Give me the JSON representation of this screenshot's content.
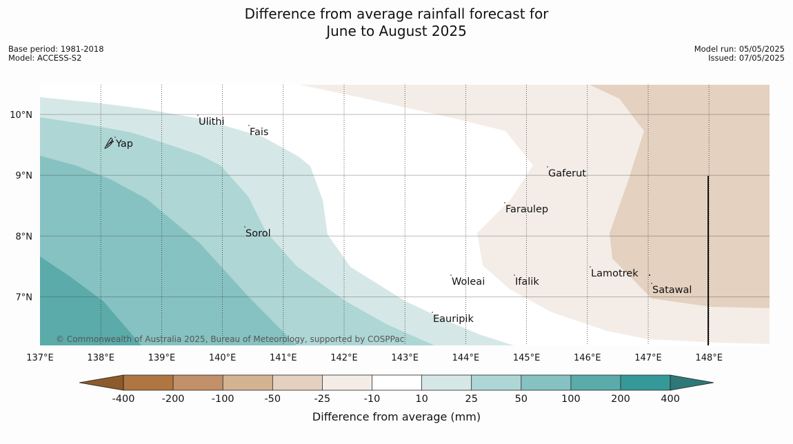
{
  "title": {
    "line1": "Difference from average rainfall forecast for",
    "line2": "June to August 2025"
  },
  "meta_left": {
    "base_period": "Base period: 1981-2018",
    "model": "Model: ACCESS-S2"
  },
  "meta_right": {
    "model_run": "Model run: 05/05/2025",
    "issued": "Issued: 07/05/2025"
  },
  "map": {
    "lat_labels": [
      "10°N",
      "9°N",
      "8°N",
      "7°N"
    ],
    "lon_labels": [
      "137°E",
      "138°E",
      "139°E",
      "140°E",
      "141°E",
      "142°E",
      "143°E",
      "144°E",
      "145°E",
      "146°E",
      "147°E",
      "148°E"
    ],
    "places": [
      "Ulithi",
      "Fais",
      "Yap",
      "Gaferut",
      "Faraulep",
      "Sorol",
      "Woleai",
      "Ifalik",
      "Lamotrek",
      "Satawal",
      "Eauripik"
    ],
    "copyright": "© Commonwealth of Australia 2025, Bureau of Meteorology, supported by COSPPac"
  },
  "colorbar": {
    "ticks": [
      "-400",
      "-200",
      "-100",
      "-50",
      "-25",
      "-10",
      "10",
      "25",
      "50",
      "100",
      "200",
      "400"
    ],
    "label": "Difference from average (mm)",
    "colors": {
      "lt_minus400": "#8d5a2b",
      "m400_m200": "#b07641",
      "m200_m100": "#c2916a",
      "m100_m50": "#d4b393",
      "m50_m25": "#e4d1bf",
      "m25_m10": "#f4ede7",
      "m10_10": "#ffffff",
      "p10_25": "#d5e8e7",
      "p25_50": "#aed6d5",
      "p50_100": "#86c2c1",
      "p100_200": "#5aabaa",
      "p200_400": "#349998",
      "gt400": "#2e7877"
    }
  }
}
